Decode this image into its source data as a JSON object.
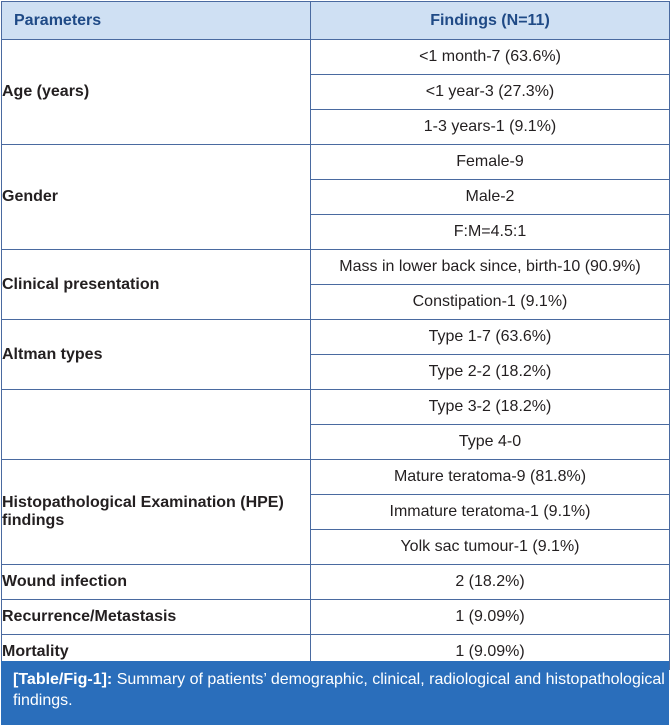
{
  "table": {
    "headers": {
      "parameters": "Parameters",
      "findings": "Findings (N=11)"
    },
    "groups": [
      {
        "parameter": "Age (years)",
        "findings": [
          "<1 month-7 (63.6%)",
          "<1 year-3 (27.3%)",
          "1-3 years-1 (9.1%)"
        ]
      },
      {
        "parameter": "Gender",
        "findings": [
          "Female-9",
          "Male-2",
          "F:M=4.5:1"
        ]
      },
      {
        "parameter": "Clinical presentation",
        "findings": [
          "Mass in lower back since, birth-10 (90.9%)",
          "Constipation-1 (9.1%)"
        ]
      },
      {
        "parameter": "Altman types",
        "findings": [
          "Type 1-7 (63.6%)",
          "Type 2-2 (18.2%)"
        ]
      },
      {
        "parameter": "",
        "findings": [
          "Type 3-2 (18.2%)",
          "Type 4-0"
        ]
      },
      {
        "parameter": "Histopathological Examination (HPE) findings",
        "findings": [
          "Mature teratoma-9 (81.8%)",
          "Immature teratoma-1 (9.1%)",
          "Yolk sac tumour-1 (9.1%)"
        ]
      },
      {
        "parameter": "Wound infection",
        "findings": [
          "2 (18.2%)"
        ]
      },
      {
        "parameter": "Recurrence/Metastasis",
        "findings": [
          "1 (9.09%)"
        ]
      },
      {
        "parameter": "Mortality",
        "findings": [
          "1 (9.09%)"
        ]
      }
    ]
  },
  "caption": {
    "label": "[Table/Fig-1]:",
    "text": " Summary of patients’ demographic, clinical, radiological and histopathological findings."
  },
  "colors": {
    "header_bg": "#cfe0f3",
    "header_text": "#1f4a86",
    "caption_bg": "#2a6ebb",
    "border": "#4a6aa0"
  }
}
